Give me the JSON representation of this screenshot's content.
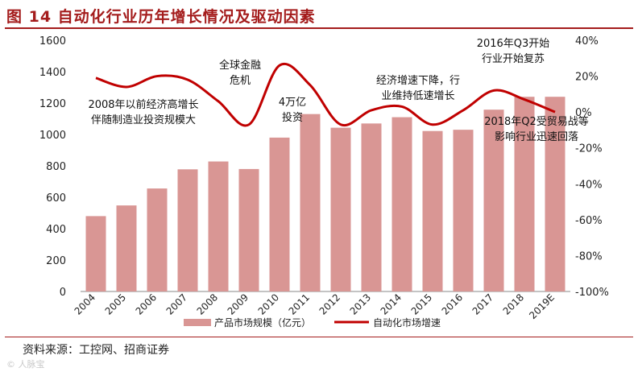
{
  "figure_title": "图 14 自动化行业历年增长情况及驱动因素",
  "source": "资料来源：工控网、招商证券",
  "watermark": "© 人脉宝",
  "chart_data": {
    "type": "bar",
    "categories": [
      "2004",
      "2005",
      "2006",
      "2007",
      "2008",
      "2009",
      "2010",
      "2011",
      "2012",
      "2013",
      "2014",
      "2015",
      "2016",
      "2017",
      "2018",
      "2019E"
    ],
    "series": [
      {
        "name": "产品市场规模（亿元）",
        "type": "bar",
        "axis": "left",
        "color": "#d99694",
        "values": [
          480,
          548,
          656,
          778,
          828,
          780,
          980,
          1130,
          1043,
          1070,
          1110,
          1022,
          1030,
          1158,
          1240,
          1240
        ]
      },
      {
        "name": "自动化市场增速",
        "type": "line",
        "axis": "right",
        "color": "#c00000",
        "values": [
          19,
          14,
          20,
          18,
          6,
          -7,
          26,
          15,
          -7,
          1,
          3,
          -7,
          1,
          12,
          7,
          0
        ]
      }
    ],
    "y_left": {
      "min": 0,
      "max": 1600,
      "ticks": [
        0,
        200,
        400,
        600,
        800,
        1000,
        1200,
        1400,
        1600
      ]
    },
    "y_right": {
      "min": -100,
      "max": 40,
      "ticks": [
        "40%",
        "20%",
        "0%",
        "-20%",
        "-40%",
        "-60%",
        "-80%",
        "-100%"
      ]
    },
    "annotations": [
      {
        "id": "a2008",
        "lines": [
          "2008年以前经济高增长",
          "伴随制造业投资规模大"
        ]
      },
      {
        "id": "acrisis",
        "lines": [
          "全球金融",
          "危机"
        ]
      },
      {
        "id": "ainvest",
        "lines": [
          "4万亿",
          "投资"
        ]
      },
      {
        "id": "aslow",
        "lines": [
          "经济增速下降，行",
          "业维持低速增长"
        ]
      },
      {
        "id": "a2016",
        "lines": [
          "2016年Q3开始",
          "行业开始复苏"
        ]
      },
      {
        "id": "a2018",
        "lines": [
          "2018年Q2受贸易战等",
          "影响行业迅速回落"
        ]
      }
    ],
    "legend": {
      "position": "bottom"
    }
  }
}
